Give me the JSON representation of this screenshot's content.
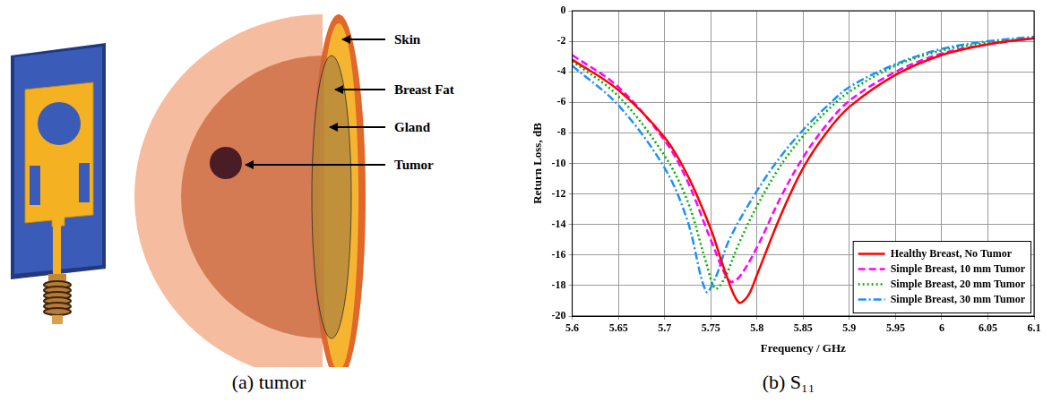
{
  "diagram": {
    "labels": [
      "Skin",
      "Breast Fat",
      "Gland",
      "Tumor"
    ]
  },
  "captions": [
    "(a) tumor",
    "(b) S₁₁"
  ],
  "chart_data": {
    "type": "line",
    "xlabel": "Frequency / GHz",
    "ylabel": "Return Loss, dB",
    "xlim": [
      5.6,
      6.1
    ],
    "xticks": [
      5.6,
      5.65,
      5.7,
      5.75,
      5.8,
      5.85,
      5.9,
      5.95,
      6,
      6.05,
      6.1
    ],
    "ylim": [
      -20,
      0
    ],
    "yticks": [
      -20,
      -18,
      -16,
      -14,
      -12,
      -10,
      -8,
      -6,
      -4,
      -2,
      0
    ],
    "grid": true,
    "legend": "lower right",
    "series": [
      {
        "name": "Healthy Breast, No Tumor",
        "color": "#ff0000",
        "line_style": "solid",
        "x": [
          5.6,
          5.65,
          5.7,
          5.725,
          5.75,
          5.765,
          5.78,
          5.79,
          5.8,
          5.825,
          5.85,
          5.875,
          5.9,
          5.95,
          6.0,
          6.05,
          6.1
        ],
        "values": [
          -3.2,
          -5.2,
          -8.3,
          -10.8,
          -14.3,
          -17,
          -19.1,
          -18.7,
          -17.3,
          -13.5,
          -10.3,
          -8,
          -6.3,
          -4.2,
          -2.9,
          -2.2,
          -1.8
        ]
      },
      {
        "name": "Simple Breast, 10 mm Tumor",
        "color": "#ff00ff",
        "line_style": "dashed",
        "x": [
          5.6,
          5.65,
          5.7,
          5.725,
          5.75,
          5.77,
          5.78,
          5.8,
          5.825,
          5.85,
          5.875,
          5.9,
          5.95,
          6.0,
          6.05,
          6.1
        ],
        "values": [
          -2.9,
          -5.0,
          -8.5,
          -11.2,
          -15,
          -17.7,
          -17.5,
          -15.5,
          -12.3,
          -9.6,
          -7.5,
          -5.9,
          -4.0,
          -2.8,
          -2.2,
          -1.8
        ]
      },
      {
        "name": "Simple Breast, 20 mm Tumor",
        "color": "#00b000",
        "line_style": "dotted",
        "x": [
          5.6,
          5.65,
          5.7,
          5.725,
          5.745,
          5.755,
          5.765,
          5.78,
          5.8,
          5.825,
          5.85,
          5.875,
          5.9,
          5.95,
          6.0,
          6.05,
          6.1
        ],
        "values": [
          -3.3,
          -5.6,
          -9.5,
          -12.5,
          -16.5,
          -18.2,
          -17.5,
          -15.3,
          -12.8,
          -10.2,
          -8.2,
          -6.6,
          -5.3,
          -3.6,
          -2.6,
          -2.1,
          -1.8
        ]
      },
      {
        "name": "Simple Breast, 30 mm Tumor",
        "color": "#1e8fff",
        "line_style": "dashdot",
        "x": [
          5.6,
          5.65,
          5.7,
          5.725,
          5.745,
          5.755,
          5.77,
          5.8,
          5.825,
          5.85,
          5.875,
          5.9,
          5.95,
          6.0,
          6.05,
          6.1
        ],
        "values": [
          -3.6,
          -6.2,
          -10.3,
          -13.8,
          -18.4,
          -17.5,
          -15.0,
          -11.8,
          -9.6,
          -7.8,
          -6.3,
          -5.0,
          -3.5,
          -2.5,
          -2.0,
          -1.7
        ]
      }
    ]
  }
}
